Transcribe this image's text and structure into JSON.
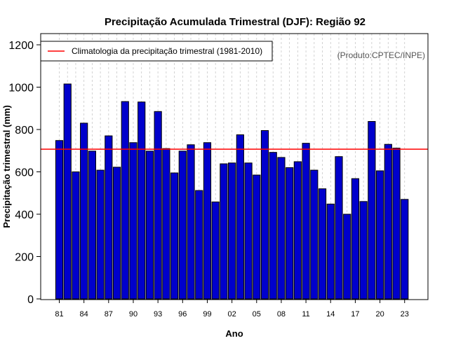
{
  "colors": {
    "bar_fill": "#0000cc",
    "bar_stroke": "#000000",
    "climatology_line": "#ff0000",
    "grid": "#c8c8c8"
  },
  "chart_data": {
    "type": "bar",
    "title": "Precipitação Acumulada Trimestral (DJF): Região 92",
    "xlabel": "Ano",
    "ylabel": "Precipitação trimestral (mm)",
    "source": "(Produto:CPTEC/INPE)",
    "ylim": [
      0,
      1200
    ],
    "yticks": [
      0,
      200,
      400,
      600,
      800,
      1000,
      1200
    ],
    "xtick_labels": [
      "81",
      "84",
      "87",
      "90",
      "93",
      "96",
      "99",
      "02",
      "05",
      "08",
      "11",
      "14",
      "17",
      "20",
      "23"
    ],
    "xtick_every": 3,
    "grid": "vertical dashed lines at each year",
    "legend": {
      "position": "top-left",
      "entries": [
        "Climatologia da precipitação trimestral (1981-2010)"
      ]
    },
    "climatology": 707,
    "categories": [
      "81",
      "82",
      "83",
      "84",
      "85",
      "86",
      "87",
      "88",
      "89",
      "90",
      "91",
      "92",
      "93",
      "94",
      "95",
      "96",
      "97",
      "98",
      "99",
      "00",
      "01",
      "02",
      "03",
      "04",
      "05",
      "06",
      "07",
      "08",
      "09",
      "10",
      "11",
      "12",
      "13",
      "14",
      "15",
      "16",
      "17",
      "18",
      "19",
      "20",
      "21",
      "22",
      "23"
    ],
    "values": [
      748,
      1015,
      600,
      830,
      698,
      608,
      770,
      622,
      932,
      738,
      930,
      698,
      885,
      710,
      595,
      698,
      728,
      512,
      738,
      458,
      638,
      642,
      775,
      642,
      585,
      795,
      692,
      668,
      620,
      648,
      735,
      608,
      520,
      448,
      672,
      400,
      568,
      460,
      838,
      605,
      730,
      712,
      470
    ]
  }
}
